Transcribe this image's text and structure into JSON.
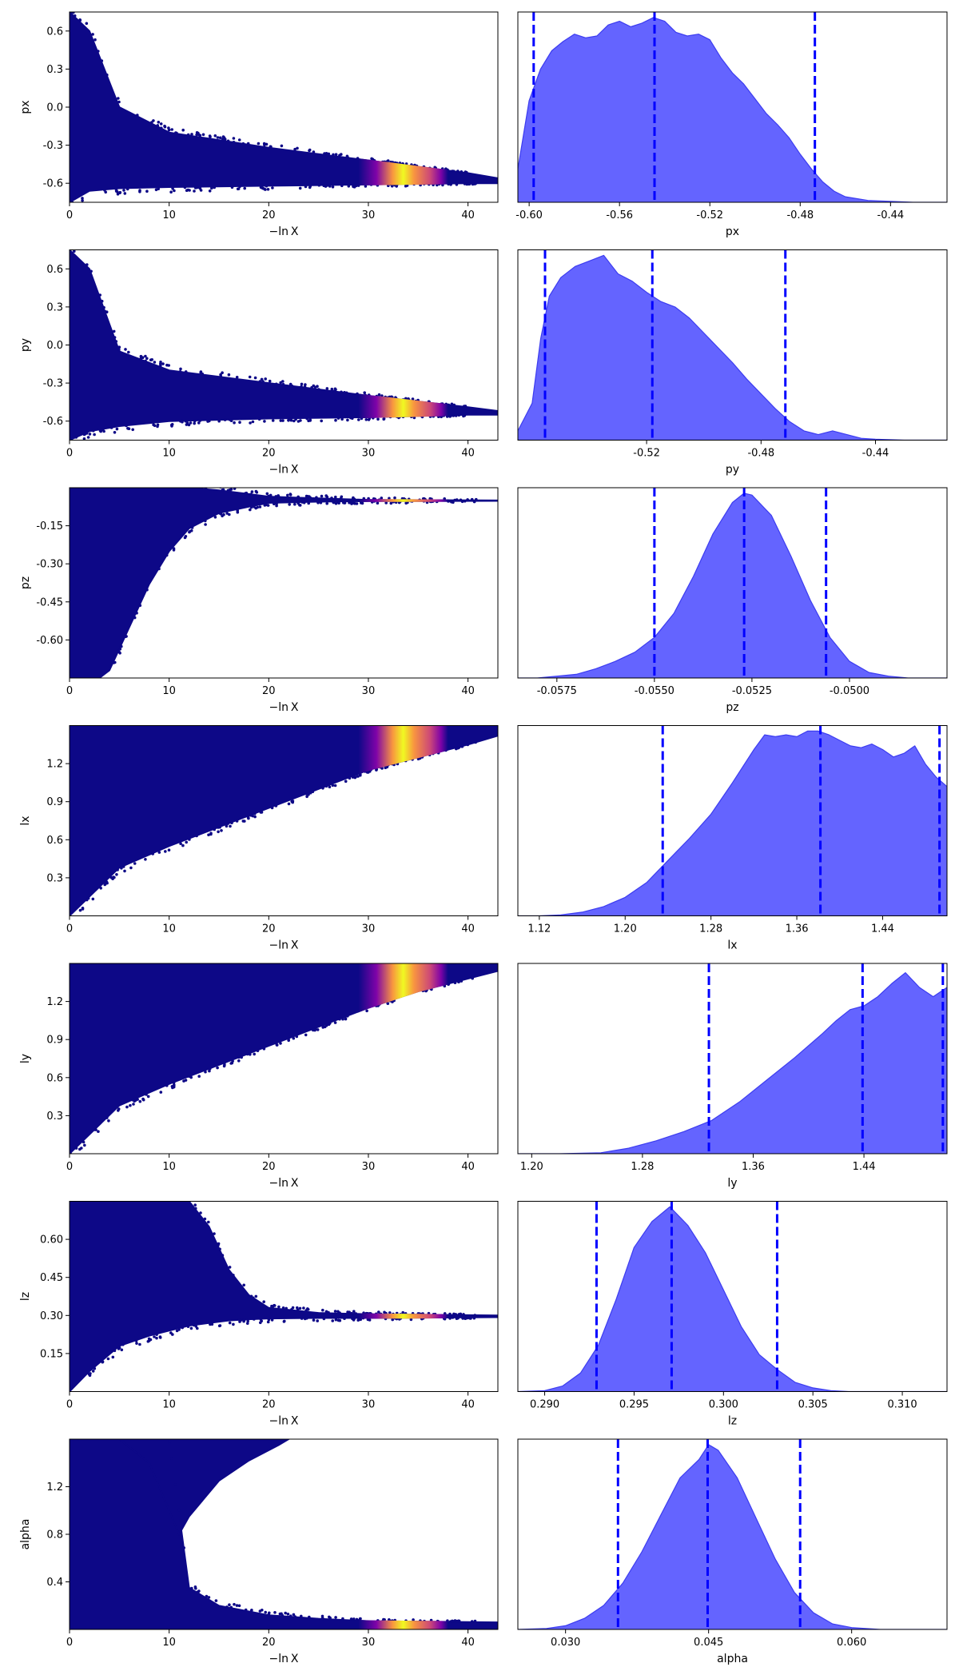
{
  "figure": {
    "shared_xlabel": "−ln X",
    "trace_xticks": [
      "0",
      "10",
      "20",
      "30",
      "40"
    ]
  },
  "colors": {
    "trace_points": "#0d0887",
    "trace_bright": "#f0f921",
    "trace_warm": "#f89540",
    "trace_mid": "#cc4778",
    "trace_purple": "#7e03a8",
    "posterior_fill": "#6464ff",
    "posterior_edge": "#3c3cf0",
    "quantile_lines": "#0000ff",
    "axes": "#000000"
  },
  "chart_data": [
    {
      "type": "scatter",
      "title": "",
      "xlabel": "−ln X",
      "ylabel": "px",
      "xlim": [
        0,
        43
      ],
      "ylim": [
        -0.75,
        0.75
      ],
      "xticks": [
        "0",
        "10",
        "20",
        "30",
        "40"
      ],
      "yticks": [
        "-0.6",
        "-0.3",
        "0.0",
        "0.3",
        "0.6"
      ],
      "trace_envelope": {
        "x": [
          0,
          2,
          5,
          10,
          20,
          30,
          40,
          43
        ],
        "lower": [
          -0.75,
          -0.66,
          -0.64,
          -0.63,
          -0.62,
          -0.61,
          -0.6,
          -0.6
        ],
        "upper": [
          0.75,
          0.6,
          0.0,
          -0.2,
          -0.32,
          -0.42,
          -0.52,
          -0.56
        ]
      },
      "bright_region": {
        "x_start": 29,
        "x_end": 38,
        "peak": 33
      },
      "grid": false
    },
    {
      "type": "area",
      "title": "",
      "xlabel": "px",
      "ylabel": "",
      "xlim": [
        -0.605,
        -0.415
      ],
      "xticks": [
        "-0.60",
        "-0.56",
        "-0.52",
        "-0.48",
        "-0.44"
      ],
      "density": {
        "x": [
          -0.605,
          -0.6,
          -0.595,
          -0.59,
          -0.585,
          -0.58,
          -0.575,
          -0.57,
          -0.565,
          -0.56,
          -0.555,
          -0.55,
          -0.545,
          -0.54,
          -0.535,
          -0.53,
          -0.525,
          -0.52,
          -0.515,
          -0.51,
          -0.505,
          -0.5,
          -0.495,
          -0.49,
          -0.485,
          -0.48,
          -0.475,
          -0.47,
          -0.465,
          -0.46,
          -0.45,
          -0.44,
          -0.43,
          -0.415
        ],
        "y": [
          0.18,
          0.55,
          0.72,
          0.82,
          0.87,
          0.91,
          0.89,
          0.9,
          0.96,
          0.98,
          0.95,
          0.97,
          1.0,
          0.98,
          0.92,
          0.9,
          0.91,
          0.88,
          0.78,
          0.7,
          0.64,
          0.56,
          0.48,
          0.42,
          0.35,
          0.26,
          0.18,
          0.11,
          0.06,
          0.03,
          0.01,
          0.005,
          0.0,
          0.0
        ]
      },
      "quantiles": [
        -0.598,
        -0.5445,
        -0.4735
      ],
      "grid": false
    },
    {
      "type": "scatter",
      "title": "",
      "xlabel": "−ln X",
      "ylabel": "py",
      "xlim": [
        0,
        43
      ],
      "ylim": [
        -0.75,
        0.75
      ],
      "xticks": [
        "0",
        "10",
        "20",
        "30",
        "40"
      ],
      "yticks": [
        "-0.6",
        "-0.3",
        "0.0",
        "0.3",
        "0.6"
      ],
      "trace_envelope": {
        "x": [
          0,
          2,
          5,
          10,
          20,
          30,
          40,
          43
        ],
        "lower": [
          -0.75,
          -0.68,
          -0.64,
          -0.6,
          -0.58,
          -0.57,
          -0.55,
          -0.55
        ],
        "upper": [
          0.75,
          0.6,
          -0.05,
          -0.2,
          -0.3,
          -0.4,
          -0.49,
          -0.52
        ]
      },
      "bright_region": {
        "x_start": 29,
        "x_end": 38,
        "peak": 33
      },
      "grid": false
    },
    {
      "type": "area",
      "title": "",
      "xlabel": "py",
      "ylabel": "",
      "xlim": [
        -0.565,
        -0.415
      ],
      "xticks": [
        "-0.52",
        "-0.48",
        "-0.44"
      ],
      "density": {
        "x": [
          -0.565,
          -0.56,
          -0.557,
          -0.554,
          -0.55,
          -0.545,
          -0.54,
          -0.535,
          -0.53,
          -0.525,
          -0.52,
          -0.515,
          -0.51,
          -0.505,
          -0.5,
          -0.495,
          -0.49,
          -0.485,
          -0.48,
          -0.475,
          -0.47,
          -0.465,
          -0.46,
          -0.455,
          -0.45,
          -0.445,
          -0.44,
          -0.43,
          -0.415
        ],
        "y": [
          0.05,
          0.2,
          0.55,
          0.78,
          0.88,
          0.94,
          0.97,
          1.0,
          0.9,
          0.86,
          0.8,
          0.75,
          0.72,
          0.66,
          0.58,
          0.5,
          0.42,
          0.33,
          0.25,
          0.17,
          0.1,
          0.05,
          0.03,
          0.05,
          0.03,
          0.01,
          0.005,
          0.0,
          0.0
        ]
      },
      "quantiles": [
        -0.5555,
        -0.518,
        -0.4715
      ],
      "grid": false
    },
    {
      "type": "scatter",
      "title": "",
      "xlabel": "−ln X",
      "ylabel": "pz",
      "xlim": [
        0,
        43
      ],
      "ylim": [
        -0.75,
        0.0
      ],
      "xticks": [
        "0",
        "10",
        "20",
        "30",
        "40"
      ],
      "yticks": [
        "-0.60",
        "-0.45",
        "-0.30",
        "-0.15"
      ],
      "trace_envelope": {
        "x": [
          0,
          1,
          2,
          3,
          4,
          6,
          8,
          10,
          12,
          15,
          18,
          20,
          25,
          30,
          43
        ],
        "lower": [
          -0.75,
          -0.75,
          -0.75,
          -0.75,
          -0.72,
          -0.55,
          -0.38,
          -0.25,
          -0.16,
          -0.1,
          -0.075,
          -0.06,
          -0.055,
          -0.053,
          -0.052
        ],
        "upper": [
          0.0,
          0.0,
          0.0,
          0.0,
          0.0,
          0.0,
          0.0,
          0.0,
          0.0,
          -0.01,
          -0.025,
          -0.035,
          -0.042,
          -0.048,
          -0.05
        ]
      },
      "bright_region": {
        "x_start": 29,
        "x_end": 38,
        "peak": 33
      },
      "grid": false
    },
    {
      "type": "area",
      "title": "",
      "xlabel": "pz",
      "ylabel": "",
      "xlim": [
        -0.0585,
        -0.0475
      ],
      "xticks": [
        "-0.0575",
        "-0.0550",
        "-0.0525",
        "-0.0500"
      ],
      "density": {
        "x": [
          -0.0585,
          -0.058,
          -0.0575,
          -0.057,
          -0.0565,
          -0.056,
          -0.0555,
          -0.055,
          -0.0545,
          -0.054,
          -0.0535,
          -0.053,
          -0.0527,
          -0.0525,
          -0.052,
          -0.0515,
          -0.051,
          -0.0505,
          -0.05,
          -0.0495,
          -0.049,
          -0.0485,
          -0.0475
        ],
        "y": [
          0.0,
          0.0,
          0.01,
          0.02,
          0.05,
          0.09,
          0.14,
          0.22,
          0.35,
          0.55,
          0.78,
          0.95,
          1.0,
          0.99,
          0.88,
          0.66,
          0.42,
          0.22,
          0.09,
          0.03,
          0.01,
          0.0,
          0.0
        ]
      },
      "quantiles": [
        -0.055,
        -0.0527,
        -0.0506
      ],
      "grid": false
    },
    {
      "type": "scatter",
      "title": "",
      "xlabel": "−ln X",
      "ylabel": "lx",
      "xlim": [
        0,
        43
      ],
      "ylim": [
        0.0,
        1.5
      ],
      "xticks": [
        "0",
        "10",
        "20",
        "30",
        "40"
      ],
      "yticks": [
        "0.3",
        "0.6",
        "0.9",
        "1.2"
      ],
      "trace_envelope": {
        "x": [
          0,
          5,
          10,
          15,
          20,
          25,
          30,
          35,
          40,
          43
        ],
        "lower": [
          0.0,
          0.38,
          0.55,
          0.7,
          0.85,
          1.0,
          1.15,
          1.25,
          1.35,
          1.42
        ],
        "upper": [
          1.5,
          1.5,
          1.5,
          1.5,
          1.5,
          1.5,
          1.5,
          1.5,
          1.5,
          1.5
        ]
      },
      "bright_region": {
        "x_start": 29,
        "x_end": 38,
        "peak": 33
      },
      "grid": false
    },
    {
      "type": "area",
      "title": "",
      "xlabel": "lx",
      "ylabel": "",
      "xlim": [
        1.1,
        1.5
      ],
      "xticks": [
        "1.12",
        "1.20",
        "1.28",
        "1.36",
        "1.44"
      ],
      "density": {
        "x": [
          1.1,
          1.12,
          1.14,
          1.16,
          1.18,
          1.2,
          1.22,
          1.24,
          1.26,
          1.28,
          1.3,
          1.32,
          1.33,
          1.34,
          1.35,
          1.36,
          1.37,
          1.38,
          1.39,
          1.4,
          1.41,
          1.42,
          1.43,
          1.44,
          1.45,
          1.46,
          1.47,
          1.48,
          1.49,
          1.5
        ],
        "y": [
          0.0,
          0.0,
          0.005,
          0.02,
          0.05,
          0.1,
          0.18,
          0.3,
          0.42,
          0.55,
          0.72,
          0.9,
          0.98,
          0.97,
          0.98,
          0.97,
          1.0,
          1.0,
          0.98,
          0.95,
          0.92,
          0.91,
          0.93,
          0.9,
          0.86,
          0.88,
          0.92,
          0.82,
          0.75,
          0.7
        ]
      },
      "quantiles": [
        1.235,
        1.382,
        1.493
      ],
      "grid": false
    },
    {
      "type": "scatter",
      "title": "",
      "xlabel": "−ln X",
      "ylabel": "ly",
      "xlim": [
        0,
        43
      ],
      "ylim": [
        0.0,
        1.5
      ],
      "xticks": [
        "0",
        "10",
        "20",
        "30",
        "40"
      ],
      "yticks": [
        "0.3",
        "0.6",
        "0.9",
        "1.2"
      ],
      "trace_envelope": {
        "x": [
          0,
          5,
          10,
          15,
          20,
          25,
          30,
          35,
          40,
          43
        ],
        "lower": [
          0.0,
          0.38,
          0.55,
          0.7,
          0.85,
          1.0,
          1.15,
          1.28,
          1.38,
          1.44
        ],
        "upper": [
          1.5,
          1.5,
          1.5,
          1.5,
          1.5,
          1.5,
          1.5,
          1.5,
          1.5,
          1.5
        ]
      },
      "bright_region": {
        "x_start": 29,
        "x_end": 38,
        "peak": 33
      },
      "grid": false
    },
    {
      "type": "area",
      "title": "",
      "xlabel": "ly",
      "ylabel": "",
      "xlim": [
        1.19,
        1.5
      ],
      "xticks": [
        "1.20",
        "1.28",
        "1.36",
        "1.44"
      ],
      "density": {
        "x": [
          1.19,
          1.22,
          1.25,
          1.27,
          1.29,
          1.31,
          1.33,
          1.35,
          1.37,
          1.39,
          1.41,
          1.42,
          1.43,
          1.44,
          1.45,
          1.46,
          1.47,
          1.48,
          1.49,
          1.5
        ],
        "y": [
          0.0,
          0.0,
          0.005,
          0.03,
          0.07,
          0.12,
          0.18,
          0.28,
          0.4,
          0.52,
          0.65,
          0.72,
          0.78,
          0.8,
          0.85,
          0.92,
          0.98,
          0.9,
          0.85,
          0.9
        ]
      },
      "quantiles": [
        1.328,
        1.439,
        1.497
      ],
      "grid": false
    },
    {
      "type": "scatter",
      "title": "",
      "xlabel": "−ln X",
      "ylabel": "lz",
      "xlim": [
        0,
        43
      ],
      "ylim": [
        0.0,
        0.75
      ],
      "xticks": [
        "0",
        "10",
        "20",
        "30",
        "40"
      ],
      "yticks": [
        "0.15",
        "0.30",
        "0.45",
        "0.60"
      ],
      "trace_envelope": {
        "x": [
          0,
          2,
          5,
          8,
          10,
          12,
          14,
          16,
          18,
          20,
          25,
          30,
          43
        ],
        "lower": [
          0.0,
          0.08,
          0.18,
          0.22,
          0.24,
          0.26,
          0.27,
          0.28,
          0.285,
          0.288,
          0.29,
          0.29,
          0.293
        ],
        "upper": [
          0.75,
          0.75,
          0.75,
          0.75,
          0.75,
          0.75,
          0.65,
          0.48,
          0.38,
          0.33,
          0.31,
          0.305,
          0.3
        ]
      },
      "bright_region": {
        "x_start": 29,
        "x_end": 38,
        "peak": 33
      },
      "grid": false
    },
    {
      "type": "area",
      "title": "",
      "xlabel": "lz",
      "ylabel": "",
      "xlim": [
        0.2885,
        0.3125
      ],
      "xticks": [
        "0.290",
        "0.295",
        "0.300",
        "0.305",
        "0.310"
      ],
      "density": {
        "x": [
          0.2885,
          0.29,
          0.291,
          0.292,
          0.293,
          0.294,
          0.295,
          0.296,
          0.297,
          0.298,
          0.299,
          0.3,
          0.301,
          0.302,
          0.303,
          0.304,
          0.305,
          0.306,
          0.307,
          0.3125
        ],
        "y": [
          0.0,
          0.005,
          0.03,
          0.1,
          0.25,
          0.5,
          0.78,
          0.92,
          1.0,
          0.9,
          0.75,
          0.55,
          0.35,
          0.2,
          0.12,
          0.05,
          0.02,
          0.005,
          0.0,
          0.0
        ]
      },
      "quantiles": [
        0.2929,
        0.2971,
        0.303
      ],
      "grid": false
    },
    {
      "type": "scatter",
      "title": "",
      "xlabel": "−ln X",
      "ylabel": "alpha",
      "xlim": [
        0,
        43
      ],
      "ylim": [
        0.0,
        1.6
      ],
      "xticks": [
        "0",
        "10",
        "20",
        "30",
        "40"
      ],
      "yticks": [
        "0.4",
        "0.8",
        "1.2"
      ],
      "trace_envelope": {
        "x": [
          0,
          5,
          8,
          10,
          12,
          15,
          20,
          25,
          30,
          43
        ],
        "lower": [
          0.0,
          0.0,
          0.0,
          0.0,
          0.0,
          0.0,
          0.0,
          0.0,
          0.0,
          0.0
        ],
        "upper": [
          1.6,
          1.6,
          1.6,
          1.6,
          0.35,
          0.2,
          0.12,
          0.09,
          0.07,
          0.06
        ]
      },
      "upper_branch": {
        "x": [
          0,
          5,
          8,
          10,
          11,
          12,
          15,
          18,
          21,
          22
        ],
        "lower": [
          1.6,
          1.6,
          1.4,
          1.0,
          0.8,
          0.95,
          1.25,
          1.42,
          1.55,
          1.6
        ]
      },
      "bright_region": {
        "x_start": 29,
        "x_end": 38,
        "peak": 33
      },
      "grid": false
    },
    {
      "type": "area",
      "title": "",
      "xlabel": "alpha",
      "ylabel": "",
      "xlim": [
        0.025,
        0.07
      ],
      "xticks": [
        "0.030",
        "0.045",
        "0.060"
      ],
      "density": {
        "x": [
          0.025,
          0.028,
          0.03,
          0.032,
          0.034,
          0.036,
          0.038,
          0.04,
          0.042,
          0.044,
          0.045,
          0.046,
          0.048,
          0.05,
          0.052,
          0.054,
          0.056,
          0.058,
          0.06,
          0.063,
          0.07
        ],
        "y": [
          0.0,
          0.005,
          0.02,
          0.06,
          0.13,
          0.25,
          0.42,
          0.62,
          0.82,
          0.92,
          1.0,
          0.97,
          0.82,
          0.6,
          0.38,
          0.2,
          0.09,
          0.03,
          0.01,
          0.0,
          0.0
        ]
      },
      "quantiles": [
        0.0355,
        0.0449,
        0.0546
      ],
      "grid": false
    }
  ]
}
